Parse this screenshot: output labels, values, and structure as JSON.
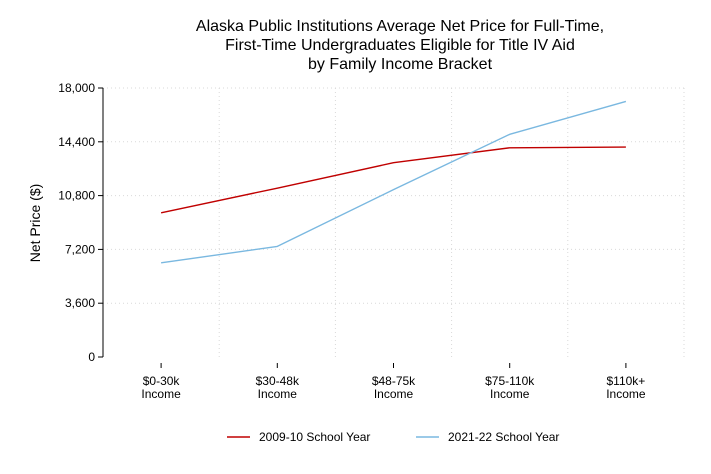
{
  "chart_data": {
    "type": "line",
    "title_lines": [
      "Alaska Public Institutions Average Net Price for Full-Time,",
      "First-Time Undergraduates Eligible for Title IV Aid",
      "by Family Income Bracket"
    ],
    "ylabel": "Net Price ($)",
    "xlabel": "",
    "categories": [
      [
        "$0-30k",
        "Income"
      ],
      [
        "$30-48k",
        "Income"
      ],
      [
        "$48-75k",
        "Income"
      ],
      [
        "$75-110k",
        "Income"
      ],
      [
        "$110k+",
        "Income"
      ]
    ],
    "yticks": [
      0,
      3600,
      7200,
      10800,
      14400,
      18000
    ],
    "ytick_labels": [
      "0",
      "3,600",
      "7,200",
      "10,800",
      "14,400",
      "18,000"
    ],
    "ylim": [
      0,
      18000
    ],
    "grid": true,
    "legend_position": "bottom",
    "series": [
      {
        "name": "2009-10 School Year",
        "color": "#c00000",
        "values": [
          9650,
          11300,
          13000,
          14000,
          14050
        ]
      },
      {
        "name": "2021-22 School Year",
        "color": "#7ab8e0",
        "values": [
          6300,
          7400,
          11200,
          14900,
          17100
        ]
      }
    ]
  }
}
